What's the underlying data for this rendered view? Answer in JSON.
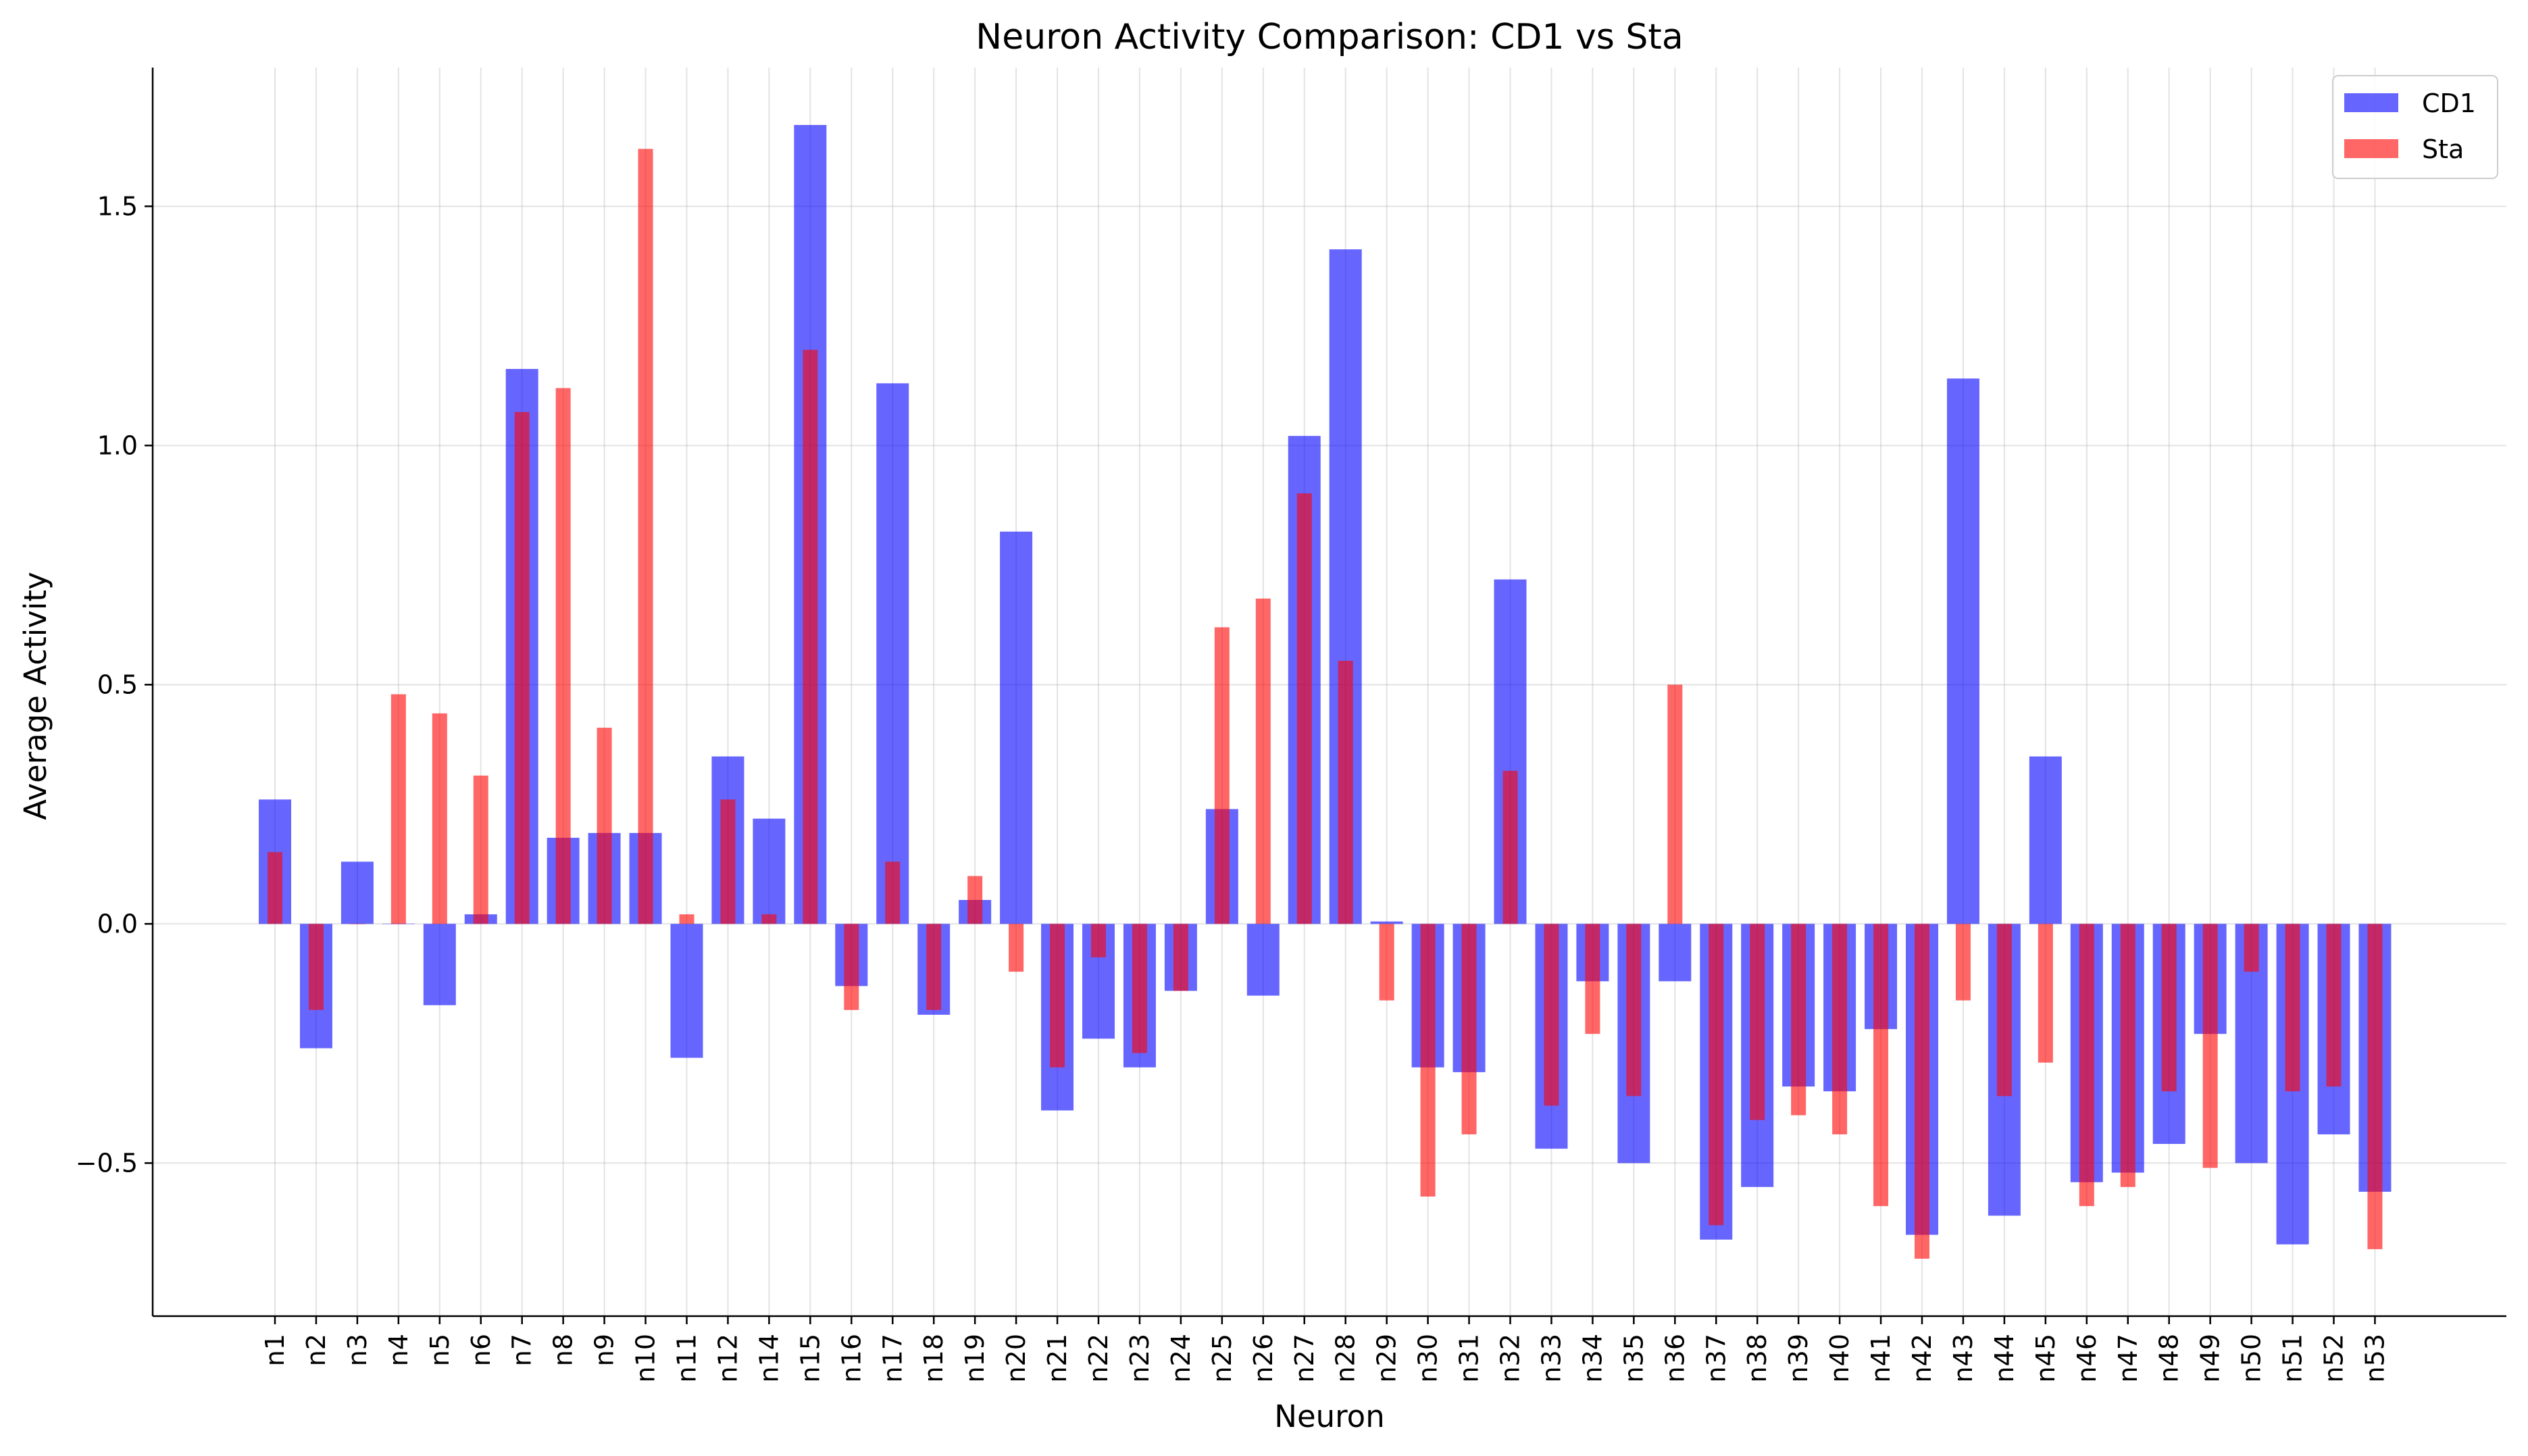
{
  "chart_data": {
    "type": "bar",
    "title": "Neuron Activity Comparison: CD1 vs Sta",
    "xlabel": "Neuron",
    "ylabel": "Average Activity",
    "ylim": [
      -0.82,
      1.79
    ],
    "yticks": [
      -0.5,
      0.0,
      0.5,
      1.0,
      1.5
    ],
    "ytick_labels": [
      "−0.5",
      "0.0",
      "0.5",
      "1.0",
      "1.5"
    ],
    "grid": true,
    "legend_position": "top-right",
    "categories": [
      "n1",
      "n2",
      "n3",
      "n4",
      "n5",
      "n6",
      "n7",
      "n8",
      "n9",
      "n10",
      "n11",
      "n12",
      "n14",
      "n15",
      "n16",
      "n17",
      "n18",
      "n19",
      "n20",
      "n21",
      "n22",
      "n23",
      "n24",
      "n25",
      "n26",
      "n27",
      "n28",
      "n29",
      "n30",
      "n31",
      "n32",
      "n33",
      "n34",
      "n35",
      "n36",
      "n37",
      "n38",
      "n39",
      "n40",
      "n41",
      "n42",
      "n43",
      "n44",
      "n45",
      "n46",
      "n47",
      "n48",
      "n49",
      "n50",
      "n51",
      "n52",
      "n53"
    ],
    "series": [
      {
        "name": "CD1",
        "color": "#0000ff",
        "values": [
          0.26,
          -0.26,
          0.13,
          0.0,
          -0.17,
          0.02,
          1.16,
          0.18,
          0.19,
          0.19,
          -0.28,
          0.35,
          0.22,
          1.67,
          -0.13,
          1.13,
          -0.19,
          0.05,
          0.82,
          -0.39,
          -0.24,
          -0.3,
          -0.14,
          0.24,
          -0.15,
          1.02,
          1.41,
          0.005,
          -0.3,
          -0.31,
          0.72,
          -0.47,
          -0.12,
          -0.5,
          -0.12,
          -0.66,
          -0.55,
          -0.34,
          -0.35,
          -0.22,
          -0.65,
          1.14,
          -0.61,
          0.35,
          -0.54,
          -0.52,
          -0.46,
          -0.23,
          -0.5,
          -0.67,
          -0.44,
          -0.56
        ]
      },
      {
        "name": "Sta",
        "color": "#ff0000",
        "values": [
          0.15,
          -0.18,
          0.0,
          0.48,
          0.44,
          0.31,
          1.07,
          1.12,
          0.41,
          1.62,
          0.02,
          0.26,
          0.02,
          1.2,
          -0.18,
          0.13,
          -0.18,
          0.1,
          -0.1,
          -0.3,
          -0.07,
          -0.27,
          -0.14,
          0.62,
          0.68,
          0.9,
          0.55,
          -0.16,
          -0.57,
          -0.44,
          0.32,
          -0.38,
          -0.23,
          -0.36,
          0.5,
          -0.63,
          -0.41,
          -0.4,
          -0.44,
          -0.59,
          -0.7,
          -0.16,
          -0.36,
          -0.29,
          -0.59,
          -0.55,
          -0.35,
          -0.51,
          -0.1,
          -0.35,
          -0.34,
          -0.68
        ]
      }
    ]
  }
}
